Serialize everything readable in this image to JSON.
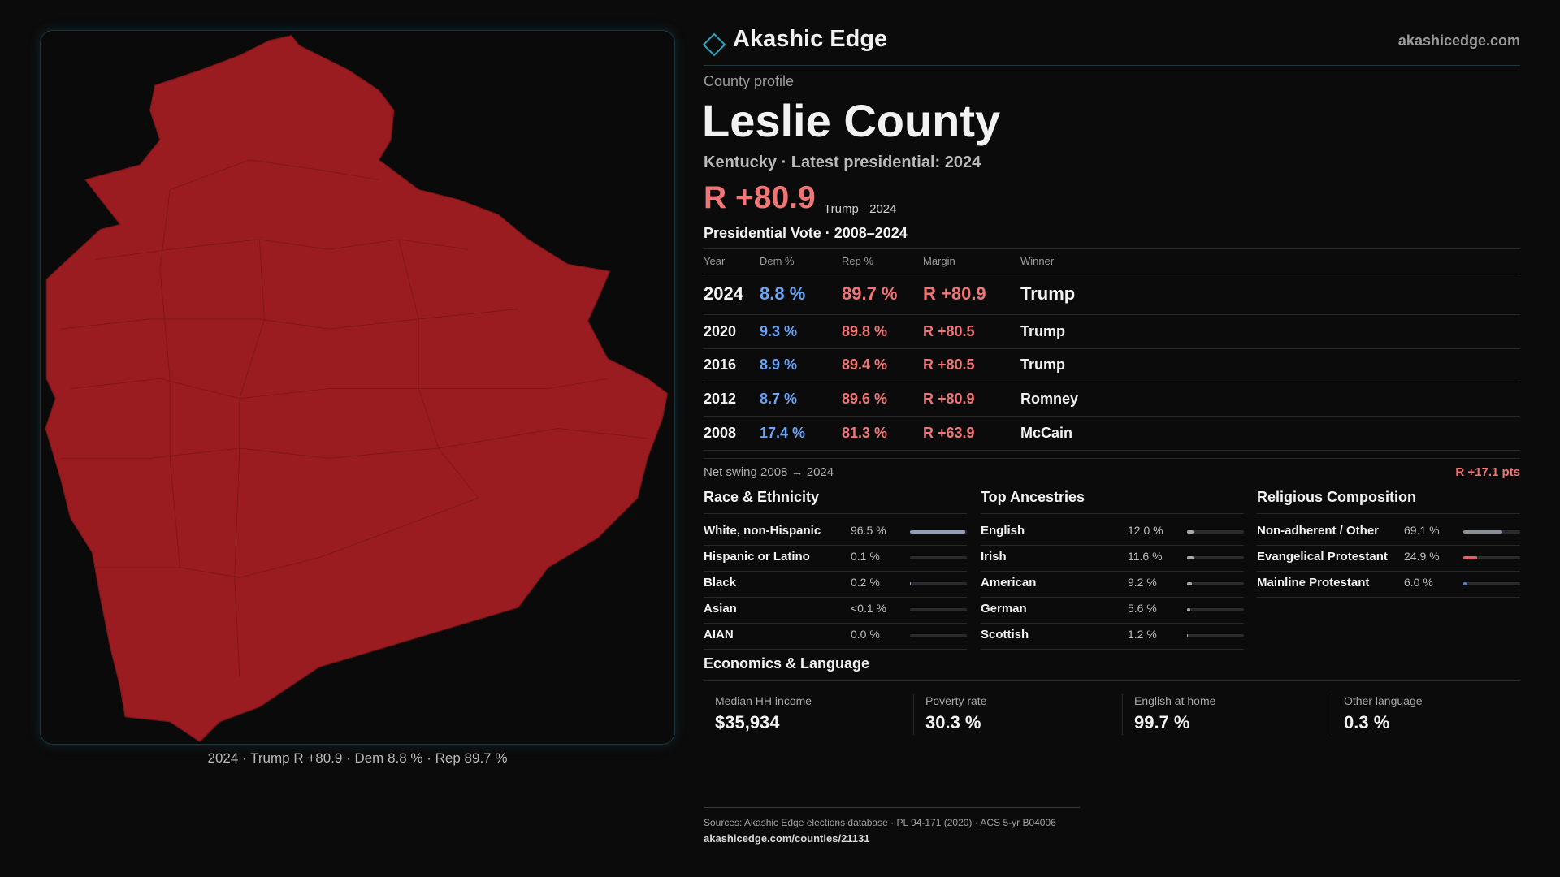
{
  "brand": {
    "name": "Akashic Edge",
    "site": "akashicedge.com"
  },
  "map": {
    "caption": "2024 · Trump R +80.9 · Dem 8.8 % · Rep 89.7 %"
  },
  "profile": {
    "label": "County profile",
    "name": "Leslie County",
    "subtitle": "Kentucky · Latest presidential: 2024",
    "margin": "R +80.9",
    "margin_note": "Trump · 2024"
  },
  "votes": {
    "title": "Presidential Vote · 2008–2024",
    "columns": [
      "Year",
      "Dem %",
      "Rep %",
      "Margin",
      "Winner"
    ],
    "rows": [
      [
        "2024",
        "8.8 %",
        "89.7 %",
        "R +80.9",
        "Trump"
      ],
      [
        "2020",
        "9.3 %",
        "89.8 %",
        "R +80.5",
        "Trump"
      ],
      [
        "2016",
        "8.9 %",
        "89.4 %",
        "R +80.5",
        "Trump"
      ],
      [
        "2012",
        "8.7 %",
        "89.6 %",
        "R +80.9",
        "Romney"
      ],
      [
        "2008",
        "17.4 %",
        "81.3 %",
        "R +63.9",
        "McCain"
      ]
    ],
    "swing_label": "Net swing 2008 → 2024",
    "swing_value": "R +17.1 pts"
  },
  "sections": [
    {
      "title": "Race & Ethnicity",
      "color": "#8fa0b6",
      "rows": [
        {
          "label": "White, non-Hispanic",
          "value": 96.5,
          "value_label": "96.5 %"
        },
        {
          "label": "Hispanic or Latino",
          "value": 0.1,
          "value_label": "0.1 %"
        },
        {
          "label": "Black",
          "value": 0.2,
          "value_label": "0.2 %"
        },
        {
          "label": "Asian",
          "value": 0.05,
          "value_label": "<0.1 %"
        },
        {
          "label": "AIAN",
          "value": 0.0,
          "value_label": "0.0 %"
        }
      ]
    },
    {
      "title": "Top Ancestries",
      "color": "#a7acb3",
      "rows": [
        {
          "label": "English",
          "value": 12.0,
          "value_label": "12.0 %"
        },
        {
          "label": "Irish",
          "value": 11.6,
          "value_label": "11.6 %"
        },
        {
          "label": "American",
          "value": 9.2,
          "value_label": "9.2 %"
        },
        {
          "label": "German",
          "value": 5.6,
          "value_label": "5.6 %"
        },
        {
          "label": "Scottish",
          "value": 1.2,
          "value_label": "1.2 %"
        }
      ]
    },
    {
      "title": "Religious Composition",
      "color": "#8a8f96",
      "rows": [
        {
          "label": "Non-adherent / Other",
          "value": 69.1,
          "value_label": "69.1 %",
          "color": "#8a8f96"
        },
        {
          "label": "Evangelical Protestant",
          "value": 24.9,
          "value_label": "24.9 %",
          "color": "#e0606c"
        },
        {
          "label": "Mainline Protestant",
          "value": 6.0,
          "value_label": "6.0 %",
          "color": "#4a86e0"
        }
      ]
    }
  ],
  "economics": {
    "title": "Economics & Language",
    "cards": [
      {
        "label": "Median HH income",
        "value": "$35,934"
      },
      {
        "label": "Poverty rate",
        "value": "30.3 %"
      },
      {
        "label": "English at home",
        "value": "99.7 %"
      },
      {
        "label": "Other language",
        "value": "0.3 %"
      }
    ]
  },
  "footer": {
    "sources": "Sources: Akashic Edge elections database · PL 94-171 (2020) · ACS 5-yr B04006",
    "url": "akashicedge.com/counties/21131"
  }
}
